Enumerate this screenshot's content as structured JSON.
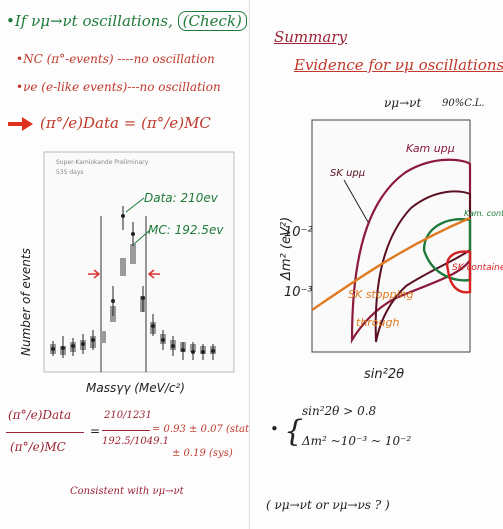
{
  "left": {
    "line1": "•If νμ→νt oscillations,",
    "check": "(Check)",
    "nc": "•NC (π°-events) ----no oscillation",
    "ve": "•νe (e-like events)---no oscillation",
    "ratio_lhs": "(π°/e)Data",
    "ratio_eq": "=",
    "ratio_rhs": "(π°/e)MC",
    "plot_header": "Super-Kamiokande Preliminary",
    "plot_sub": "535 days",
    "data_label": "Data: 210ev",
    "mc_label": "MC: 192.5ev",
    "y_axis": "Number of events",
    "x_axis": "Massγγ (MeV/c²)",
    "frac_top": "(π°/e)Data",
    "frac_bot": "(π°/e)MC",
    "frac_eq": "=",
    "num_top": "210/1231",
    "num_bot": "192.5/1049.1",
    "result": "= 0.93 ± 0.07 (stat)",
    "syst": "± 0.19 (sys)",
    "consistent": "Consistent with νμ→νt"
  },
  "right": {
    "title": "Summary",
    "subtitle": "Evidence for νμ oscillations",
    "chan": "νμ→νt",
    "cl": "90%C.L.",
    "ylabel": "Δm² (eV²)",
    "xlabel": "sin²2θ",
    "sk": "SK",
    "kam_up": "Kam upμ",
    "sk_up": "SK upμ",
    "kam_contained": "Kam. contained",
    "sk_contained": "SK contained",
    "stopping": "SK stopping",
    "through": "through",
    "bullet1": "sin²2θ > 0.8",
    "bullet2": "Δm² ~10⁻³ ~ 10⁻²",
    "question": "( νμ→νt or νμ→νs ? )"
  }
}
